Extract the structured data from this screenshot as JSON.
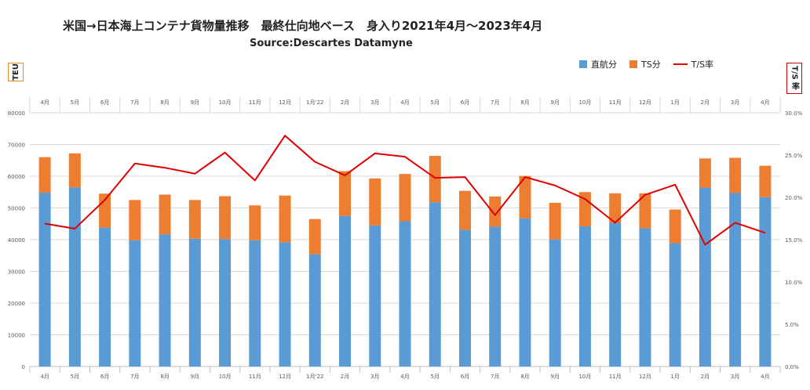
{
  "title": "米国→日本海上コンテナ貨物量推移　最終仕向地ベース　身入り2021年4月～2023年4月",
  "subtitle": "Source:Descartes Datamyne",
  "y_left_label": "TEU",
  "y_right_label": "T/S 率",
  "legend": [
    {
      "name": "直航分",
      "color": "#5b9bd5",
      "kind": "box"
    },
    {
      "name": "TS分",
      "color": "#ed7d31",
      "kind": "box"
    },
    {
      "name": "T/S率",
      "color": "#e00000",
      "kind": "line"
    }
  ],
  "chart_data": {
    "type": "bar",
    "stacked": true,
    "categories": [
      "4月",
      "5月",
      "6月",
      "7月",
      "8月",
      "9月",
      "10月",
      "11月",
      "12月",
      "1月'22",
      "2月",
      "3月",
      "4月",
      "5月",
      "6月",
      "7月",
      "8月",
      "9月",
      "10月",
      "11月",
      "12月",
      "1月",
      "2月",
      "3月",
      "4月"
    ],
    "series": [
      {
        "name": "直航分",
        "values": [
          54800,
          56500,
          43800,
          39800,
          41700,
          40300,
          40200,
          39800,
          39200,
          35400,
          47500,
          44500,
          45800,
          51800,
          43100,
          44100,
          46700,
          40100,
          44200,
          45300,
          43600,
          38900,
          56400,
          54700,
          53400
        ],
        "color": "#5b9bd5"
      },
      {
        "name": "TS分",
        "values": [
          11200,
          10700,
          10700,
          12700,
          12500,
          12200,
          13500,
          11000,
          14700,
          11100,
          14100,
          14800,
          14900,
          14600,
          12300,
          9500,
          13400,
          11500,
          10800,
          9300,
          11000,
          10600,
          9200,
          11100,
          9900
        ],
        "color": "#ed7d31"
      }
    ],
    "line_series": {
      "name": "T/S率",
      "axis": "right",
      "values": [
        16.9,
        16.3,
        19.7,
        24.0,
        23.5,
        22.8,
        25.3,
        22.0,
        27.3,
        24.2,
        22.6,
        25.2,
        24.8,
        22.3,
        22.4,
        17.9,
        22.4,
        21.4,
        19.8,
        17.0,
        20.3,
        21.5,
        14.4,
        17.0,
        15.8
      ],
      "color": "#e00000"
    },
    "y_left": {
      "min": 0,
      "max": 80000,
      "step": 10000,
      "ticks": [
        "0",
        "10000",
        "20000",
        "30000",
        "40000",
        "50000",
        "60000",
        "70000",
        "80000"
      ]
    },
    "y_right": {
      "min": 0,
      "max": 30,
      "step": 5,
      "ticks": [
        "0.0%",
        "5.0%",
        "10.0%",
        "15.0%",
        "20.0%",
        "25.0%",
        "30.0%"
      ]
    },
    "grid": true
  }
}
